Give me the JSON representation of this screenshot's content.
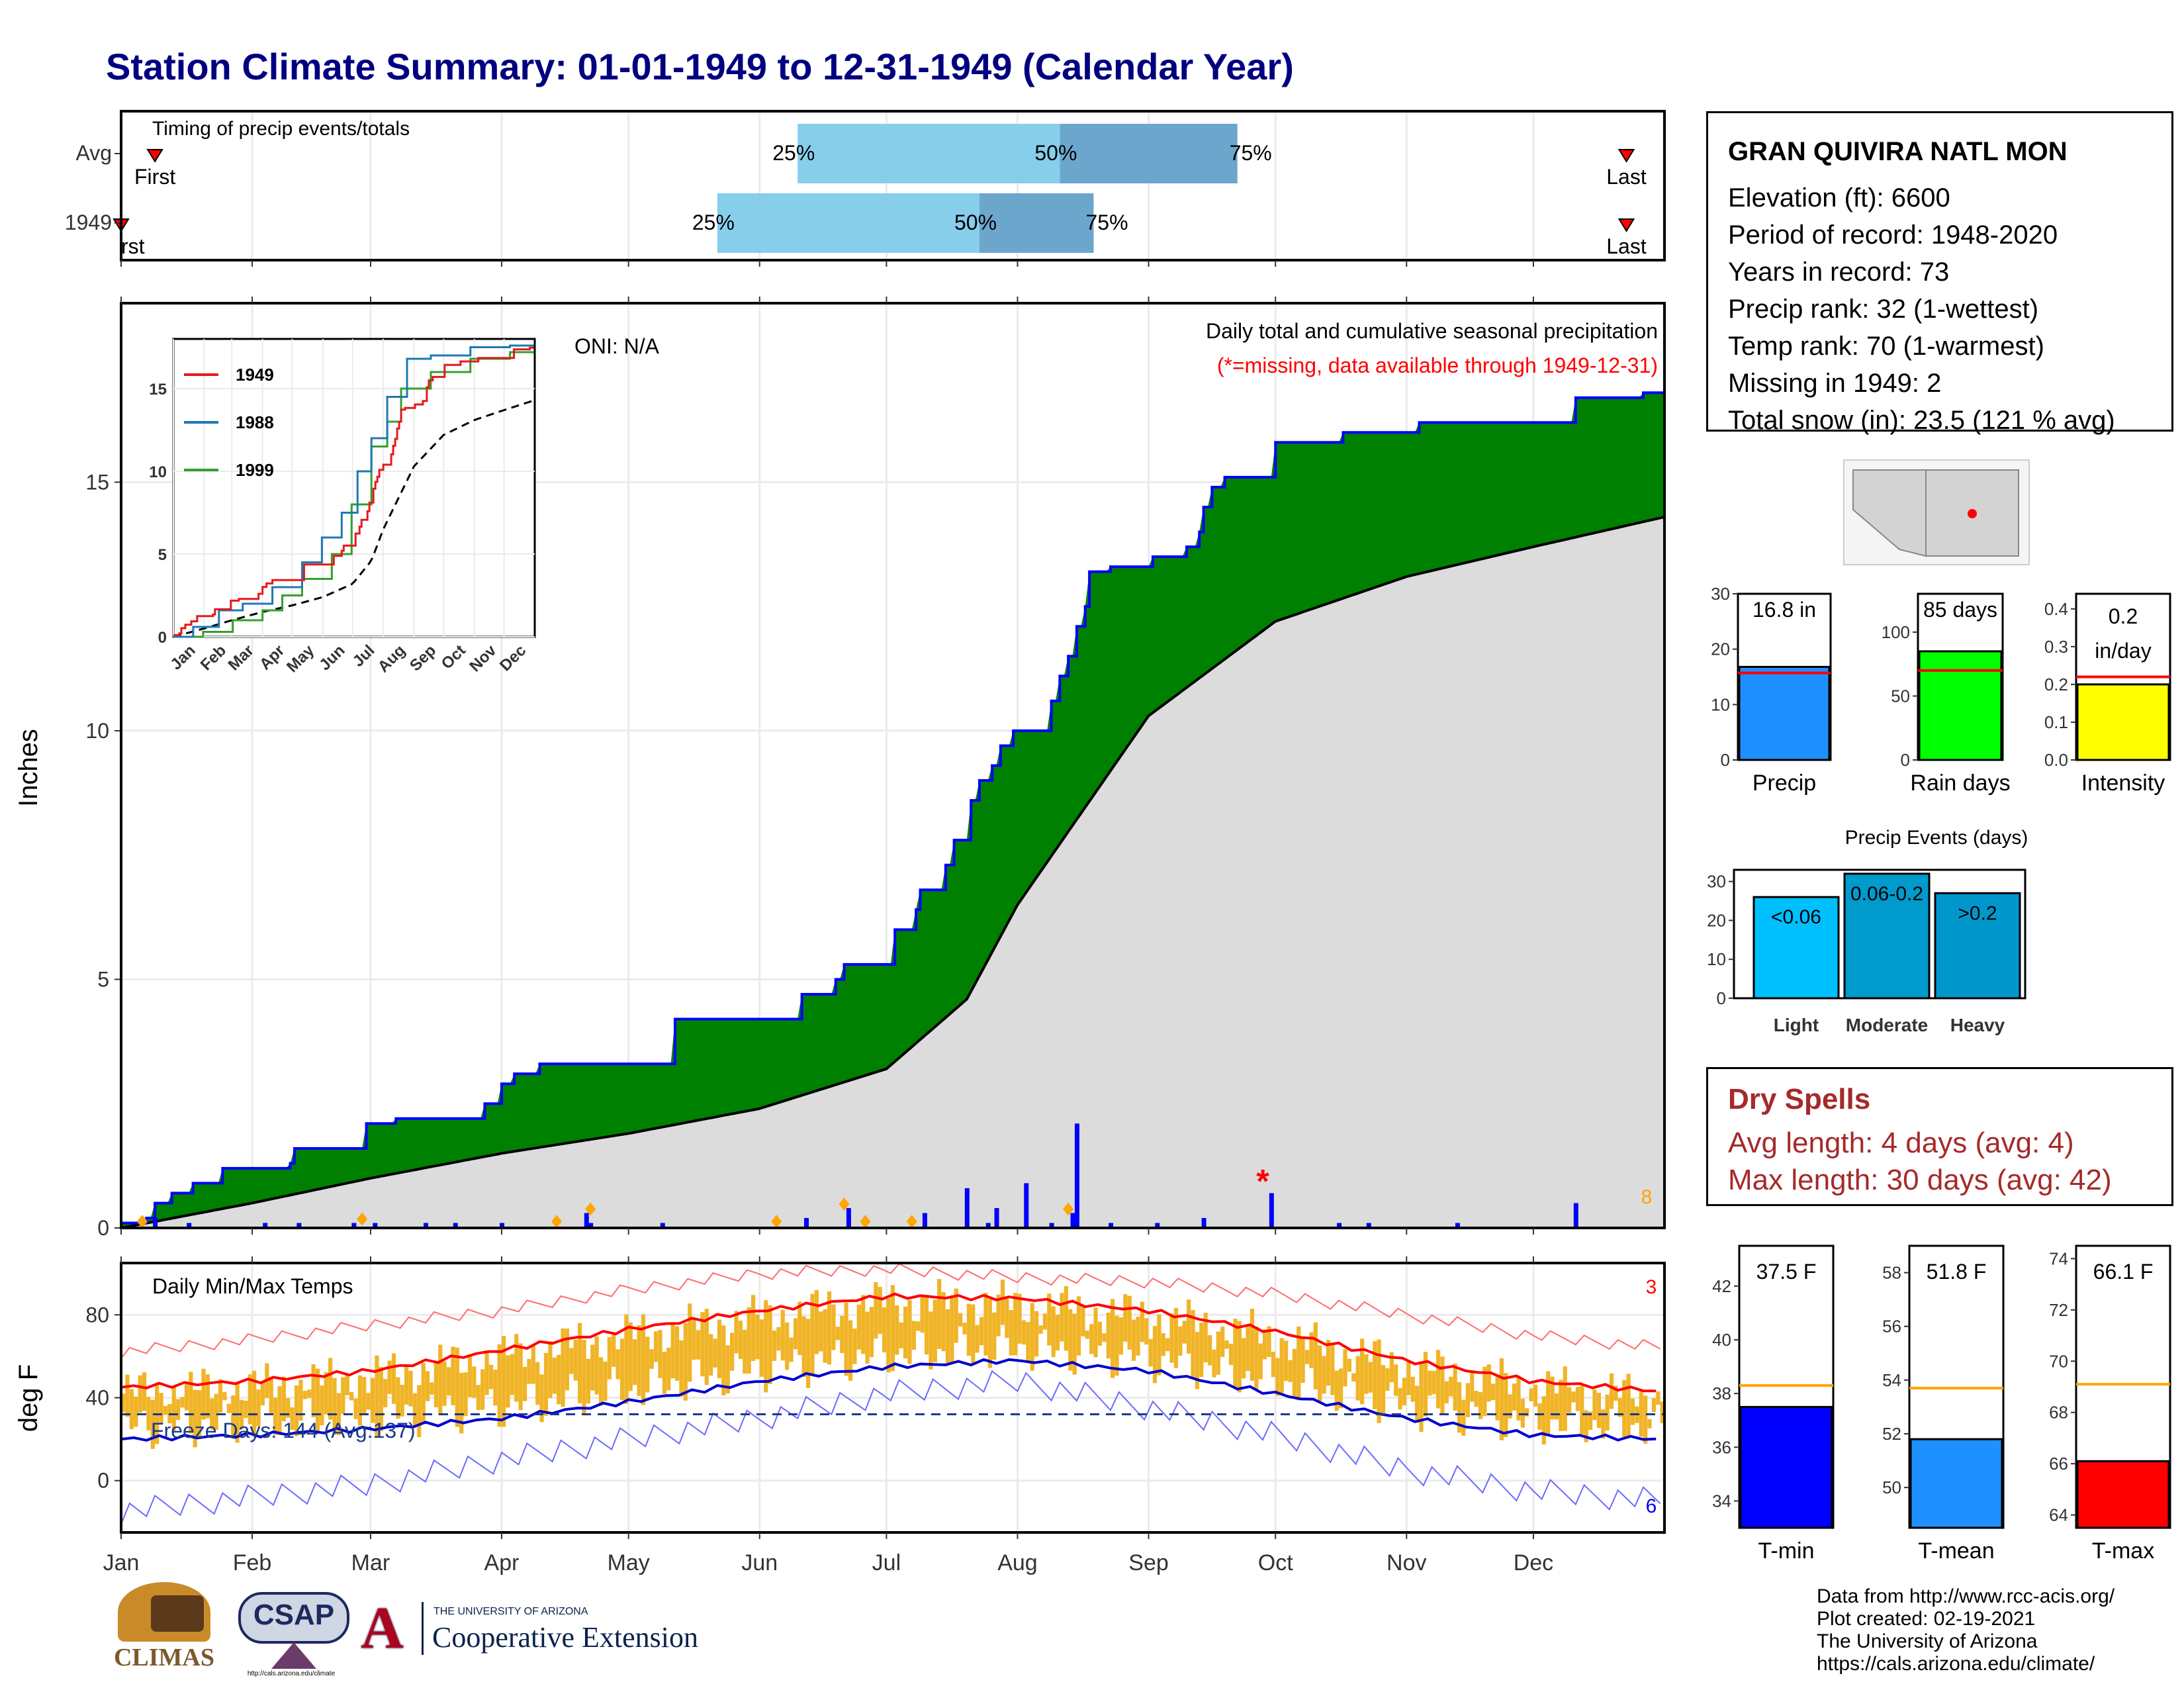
{
  "title": "Station Climate Summary: 01-01-1949 to 12-31-1949 (Calendar Year)",
  "station": {
    "name": "GRAN QUIVIRA NATL MON",
    "lines": [
      "Elevation (ft): 6600",
      "Period of record: 1948-2020",
      "Years in record: 73",
      "Precip rank: 32 (1-wettest)",
      "Temp rank: 70 (1-warmest)",
      "Missing in 1949: 2",
      "Total snow (in): 23.5 (121 % avg)"
    ]
  },
  "dry_spells": {
    "title": "Dry Spells",
    "avg": "Avg length: 4 days (avg: 4)",
    "max": "Max length: 30 days (avg: 42)"
  },
  "footer": [
    "Data from http://www.rcc-acis.org/",
    "Plot created: 02-19-2021",
    "The University of Arizona",
    "https://cals.arizona.edu/climate/"
  ],
  "logos": {
    "climas": "CLIMAS",
    "csap": "CSAP",
    "ua_small": "THE UNIVERSITY OF ARIZONA",
    "ua_big": "Cooperative Extension",
    "csap_url": "http://cals.arizona.edu/climate"
  },
  "colors": {
    "title": "#000080",
    "green": "#008000",
    "blue": "#0000ff",
    "grey": "#dcdcdc",
    "orange": "#ffa500",
    "dry": "#a52a2a"
  },
  "chart_data": [
    {
      "id": "timing",
      "type": "bar",
      "title": "Timing of precip events/totals",
      "rows": [
        {
          "label": "Avg",
          "first_day": 8,
          "last_day": 356,
          "p25": 160,
          "p50": 222,
          "p75": 264
        },
        {
          "label": "1949",
          "first_day": 0,
          "last_day": 356,
          "p25": 141,
          "p50": 203,
          "p75": 230
        }
      ],
      "pct_labels": [
        "25%",
        "50%",
        "75%"
      ],
      "first_label": "First",
      "last_label": "Last",
      "first_label_1949": "rst",
      "x_range_days": [
        0,
        365
      ]
    },
    {
      "id": "precip",
      "type": "area",
      "title": "Daily total and cumulative seasonal precipitation",
      "subtitle": "(*=missing, data available through 1949-12-31)",
      "ylabel": "Inches",
      "ylim": [
        0,
        18.6
      ],
      "yticks": [
        0,
        5,
        10,
        15
      ],
      "oni": "ONI: N/A",
      "months": [
        "Jan",
        "Feb",
        "Mar",
        "Apr",
        "May",
        "Jun",
        "Jul",
        "Aug",
        "Sep",
        "Oct",
        "Nov",
        "Dec"
      ],
      "cumulative_1949": [
        [
          0,
          0.1
        ],
        [
          6,
          0.2
        ],
        [
          8,
          0.5
        ],
        [
          12,
          0.7
        ],
        [
          17,
          0.9
        ],
        [
          24,
          1.2
        ],
        [
          40,
          1.3
        ],
        [
          41,
          1.6
        ],
        [
          58,
          2.1
        ],
        [
          65,
          2.2
        ],
        [
          86,
          2.5
        ],
        [
          90,
          2.9
        ],
        [
          93,
          3.1
        ],
        [
          99,
          3.3
        ],
        [
          131,
          4.2
        ],
        [
          161,
          4.7
        ],
        [
          169,
          5.0
        ],
        [
          171,
          5.3
        ],
        [
          183,
          6.0
        ],
        [
          188,
          6.4
        ],
        [
          189,
          6.8
        ],
        [
          195,
          7.3
        ],
        [
          197,
          7.8
        ],
        [
          201,
          8.6
        ],
        [
          203,
          9.0
        ],
        [
          206,
          9.3
        ],
        [
          208,
          9.7
        ],
        [
          211,
          10.0
        ],
        [
          220,
          10.6
        ],
        [
          222,
          11.1
        ],
        [
          224,
          11.5
        ],
        [
          226,
          12.1
        ],
        [
          228,
          12.5
        ],
        [
          229,
          13.2
        ],
        [
          234,
          13.3
        ],
        [
          242,
          13.3
        ],
        [
          244,
          13.5
        ],
        [
          252,
          13.7
        ],
        [
          255,
          14.0
        ],
        [
          256,
          14.5
        ],
        [
          258,
          14.9
        ],
        [
          261,
          15.1
        ],
        [
          273,
          15.8
        ],
        [
          276,
          15.8
        ],
        [
          289,
          16.0
        ],
        [
          307,
          16.2
        ],
        [
          344,
          16.7
        ],
        [
          360,
          16.8
        ],
        [
          365,
          16.8
        ]
      ],
      "cumulative_avg": [
        [
          0,
          0
        ],
        [
          31,
          0.5
        ],
        [
          59,
          1.0
        ],
        [
          90,
          1.5
        ],
        [
          120,
          1.9
        ],
        [
          151,
          2.4
        ],
        [
          181,
          3.2
        ],
        [
          200,
          4.6
        ],
        [
          212,
          6.5
        ],
        [
          243,
          10.3
        ],
        [
          273,
          12.2
        ],
        [
          304,
          13.1
        ],
        [
          334,
          13.7
        ],
        [
          365,
          14.3
        ]
      ],
      "daily_precip": [
        [
          8,
          0.2
        ],
        [
          16,
          0.1
        ],
        [
          34,
          0.1
        ],
        [
          42,
          0.1
        ],
        [
          55,
          0.1
        ],
        [
          60,
          0.1
        ],
        [
          72,
          0.1
        ],
        [
          79,
          0.1
        ],
        [
          90,
          0.1
        ],
        [
          110,
          0.3
        ],
        [
          111,
          0.1
        ],
        [
          128,
          0.1
        ],
        [
          162,
          0.2
        ],
        [
          172,
          0.4
        ],
        [
          190,
          0.3
        ],
        [
          200,
          0.8
        ],
        [
          205,
          0.1
        ],
        [
          207,
          0.4
        ],
        [
          214,
          0.9
        ],
        [
          220,
          0.1
        ],
        [
          225,
          0.3
        ],
        [
          226,
          2.1
        ],
        [
          234,
          0.1
        ],
        [
          245,
          0.1
        ],
        [
          256,
          0.2
        ],
        [
          272,
          0.7
        ],
        [
          288,
          0.1
        ],
        [
          295,
          0.1
        ],
        [
          316,
          0.1
        ],
        [
          344,
          0.5
        ]
      ],
      "snow_markers": [
        5,
        57,
        103,
        111,
        155,
        171,
        176,
        187,
        224
      ],
      "missing_markers": [
        270
      ],
      "count_label": "8",
      "inset": {
        "type": "line",
        "series": [
          {
            "name": "1949",
            "color": "#e31a1c"
          },
          {
            "name": "1988",
            "color": "#1f78b4"
          },
          {
            "name": "1999",
            "color": "#33a02c"
          }
        ],
        "yticks": [
          0,
          5,
          10,
          15
        ],
        "months": [
          "Jan",
          "Feb",
          "Mar",
          "Apr",
          "May",
          "Jun",
          "Jul",
          "Aug",
          "Sep",
          "Oct",
          "Nov",
          "Dec"
        ]
      }
    },
    {
      "id": "temps",
      "type": "line",
      "title": "Daily Min/Max Temps",
      "ylabel": "deg F",
      "ylim": [
        -25,
        105
      ],
      "yticks": [
        0,
        40,
        80
      ],
      "freeze": "Freeze Days: 144 (Avg:137)",
      "freeze_line": 32,
      "hot_count": "3",
      "cold_count": "6",
      "avg_max": [
        [
          0,
          45
        ],
        [
          31,
          48
        ],
        [
          59,
          53
        ],
        [
          90,
          63
        ],
        [
          120,
          73
        ],
        [
          151,
          82
        ],
        [
          181,
          89
        ],
        [
          212,
          88
        ],
        [
          243,
          82
        ],
        [
          273,
          72
        ],
        [
          304,
          58
        ],
        [
          334,
          48
        ],
        [
          365,
          43
        ]
      ],
      "avg_min": [
        [
          0,
          20
        ],
        [
          31,
          22
        ],
        [
          59,
          25
        ],
        [
          90,
          30
        ],
        [
          120,
          38
        ],
        [
          151,
          48
        ],
        [
          181,
          55
        ],
        [
          212,
          58
        ],
        [
          243,
          53
        ],
        [
          273,
          42
        ],
        [
          304,
          30
        ],
        [
          334,
          22
        ],
        [
          365,
          20
        ]
      ],
      "record_max": [
        [
          0,
          62
        ],
        [
          31,
          68
        ],
        [
          59,
          75
        ],
        [
          90,
          82
        ],
        [
          120,
          92
        ],
        [
          151,
          100
        ],
        [
          181,
          102
        ],
        [
          212,
          98
        ],
        [
          243,
          96
        ],
        [
          273,
          90
        ],
        [
          304,
          80
        ],
        [
          334,
          70
        ],
        [
          365,
          64
        ]
      ],
      "record_min": [
        [
          0,
          -15
        ],
        [
          31,
          -8
        ],
        [
          59,
          -2
        ],
        [
          90,
          10
        ],
        [
          120,
          20
        ],
        [
          151,
          30
        ],
        [
          181,
          42
        ],
        [
          212,
          48
        ],
        [
          243,
          35
        ],
        [
          273,
          22
        ],
        [
          304,
          5
        ],
        [
          334,
          -5
        ],
        [
          365,
          -10
        ]
      ]
    },
    {
      "id": "annual_bars",
      "type": "bar",
      "panels": [
        {
          "label": "Precip",
          "value": 16.8,
          "avg": 15.7,
          "text": "16.8 in",
          "ylim": [
            0,
            30
          ],
          "yticks": [
            0,
            10,
            20,
            30
          ],
          "color": "#1e90ff"
        },
        {
          "label": "Rain days",
          "value": 85,
          "avg": 70,
          "text": "85 days",
          "ylim": [
            0,
            130
          ],
          "yticks": [
            0,
            50,
            100
          ],
          "color": "#00ff00"
        },
        {
          "label": "Intensity",
          "value": 0.2,
          "avg": 0.22,
          "text": "0.2 in/day",
          "text2": "0.2",
          "text3": "in/day",
          "ylim": [
            0,
            0.44
          ],
          "yticks": [
            0.0,
            0.1,
            0.2,
            0.3,
            0.4
          ],
          "color": "#ffff00"
        }
      ]
    },
    {
      "id": "precip_events",
      "type": "bar",
      "title": "Precip Events (days)",
      "categories": [
        "Light",
        "Moderate",
        "Heavy"
      ],
      "values": [
        26,
        32,
        27
      ],
      "bar_labels": [
        "<0.06",
        "0.06-0.2",
        ">0.2"
      ],
      "colors": [
        "#00bfff",
        "#009acd",
        "#0097cc"
      ],
      "ylim": [
        0,
        33
      ],
      "yticks": [
        0,
        10,
        20,
        30
      ]
    },
    {
      "id": "temp_bars",
      "type": "bar",
      "panels": [
        {
          "label": "T-min",
          "value": 37.5,
          "avg": 38.3,
          "text": "37.5 F",
          "ylim": [
            33,
            43.5
          ],
          "yticks": [
            34,
            36,
            38,
            40,
            42
          ],
          "color": "#0000ff"
        },
        {
          "label": "T-mean",
          "value": 51.8,
          "avg": 53.7,
          "text": "51.8 F",
          "ylim": [
            48.5,
            59
          ],
          "yticks": [
            50,
            52,
            54,
            56,
            58
          ],
          "color": "#1e90ff"
        },
        {
          "label": "T-max",
          "value": 66.1,
          "avg": 69.1,
          "text": "66.1 F",
          "ylim": [
            63.5,
            74.5
          ],
          "yticks": [
            64,
            66,
            68,
            70,
            72,
            74
          ],
          "color": "#ff0000"
        }
      ]
    }
  ]
}
